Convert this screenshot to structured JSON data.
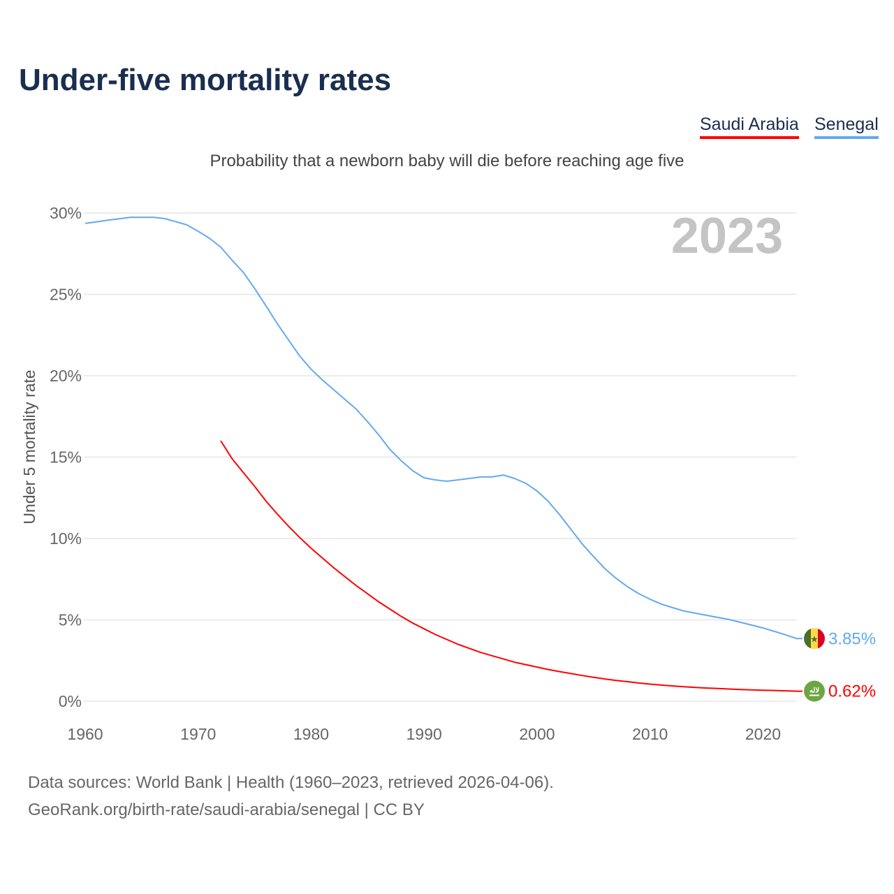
{
  "title": "Under-five mortality rates",
  "subtitle": "Probability that a newborn baby will die before reaching age five",
  "legend": [
    {
      "name": "Saudi Arabia",
      "color": "#ff0000"
    },
    {
      "name": "Senegal",
      "color": "#62aaef"
    }
  ],
  "footer": {
    "line1": "Data sources: World Bank | Health (1960–2023, retrieved 2026-04-06).",
    "line2": "GeoRank.org/birth-rate/saudi-arabia/senegal | CC BY"
  },
  "chart_data": {
    "type": "line",
    "title": "Under-five mortality rates",
    "ylabel": "Under 5 mortality rate",
    "xlabel": "",
    "year_label": "2023",
    "xlim": [
      1960,
      2023
    ],
    "ylim": [
      0,
      30
    ],
    "xticks": [
      1960,
      1970,
      1980,
      1990,
      2000,
      2010,
      2020
    ],
    "yticks": [
      0,
      5,
      10,
      15,
      20,
      25,
      30
    ],
    "ytick_labels": [
      "0%",
      "5%",
      "10%",
      "15%",
      "20%",
      "25%",
      "30%"
    ],
    "grid": true,
    "legend_position": "top-right",
    "series": [
      {
        "name": "Senegal",
        "color": "#62aaef",
        "end_label": "3.85%",
        "flag": "senegal-flag",
        "x_start": 1960,
        "values": [
          29.36,
          29.46,
          29.56,
          29.65,
          29.74,
          29.74,
          29.74,
          29.66,
          29.47,
          29.27,
          28.88,
          28.45,
          27.9,
          27.1,
          26.35,
          25.36,
          24.3,
          23.2,
          22.2,
          21.2,
          20.4,
          19.74,
          19.14,
          18.54,
          17.94,
          17.17,
          16.35,
          15.45,
          14.76,
          14.16,
          13.73,
          13.6,
          13.52,
          13.6,
          13.69,
          13.78,
          13.78,
          13.9,
          13.69,
          13.39,
          12.92,
          12.27,
          11.46,
          10.56,
          9.66,
          8.88,
          8.15,
          7.55,
          7.04,
          6.61,
          6.27,
          5.97,
          5.75,
          5.54,
          5.41,
          5.28,
          5.15,
          5.02,
          4.85,
          4.68,
          4.5,
          4.29,
          4.08,
          3.85
        ]
      },
      {
        "name": "Saudi Arabia",
        "color": "#ff0000",
        "end_label": "0.62%",
        "flag": "saudi-arabia-flag",
        "x_start": 1972,
        "values": [
          16.0,
          14.9,
          14.05,
          13.2,
          12.3,
          11.5,
          10.75,
          10.05,
          9.4,
          8.8,
          8.2,
          7.65,
          7.1,
          6.6,
          6.1,
          5.65,
          5.2,
          4.8,
          4.45,
          4.1,
          3.8,
          3.5,
          3.25,
          3.0,
          2.8,
          2.6,
          2.4,
          2.25,
          2.1,
          1.95,
          1.82,
          1.7,
          1.58,
          1.47,
          1.37,
          1.28,
          1.2,
          1.12,
          1.05,
          0.99,
          0.94,
          0.89,
          0.85,
          0.81,
          0.78,
          0.75,
          0.72,
          0.7,
          0.68,
          0.66,
          0.64,
          0.62
        ]
      }
    ]
  }
}
